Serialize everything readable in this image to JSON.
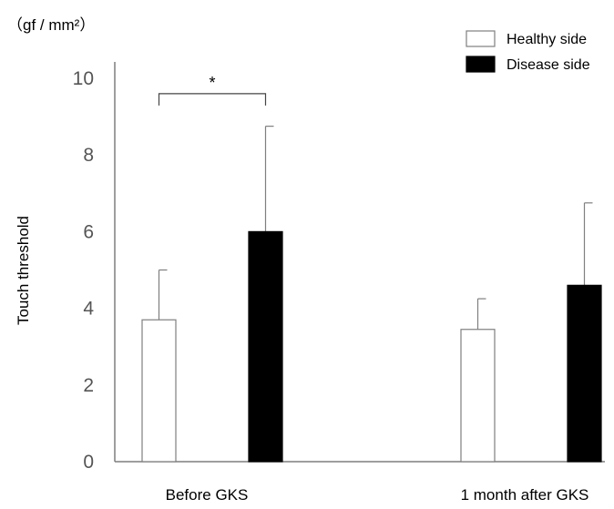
{
  "chart_data": {
    "type": "bar",
    "title": "",
    "unit_label": "（gf / mm²）",
    "xlabel": "",
    "ylabel": "Touch threshold",
    "ylim": [
      0,
      10
    ],
    "yticks": [
      0,
      2,
      4,
      6,
      8,
      10
    ],
    "categories": [
      "Before GKS",
      "1 month after GKS"
    ],
    "series": [
      {
        "name": "Healthy side",
        "fill": "#ffffff",
        "stroke": "#7f7f7f",
        "values": [
          3.7,
          3.45
        ],
        "error_upper": [
          1.3,
          0.8
        ]
      },
      {
        "name": "Disease side",
        "fill": "#000000",
        "stroke": "#000000",
        "values": [
          6.0,
          4.6
        ],
        "error_upper": [
          2.75,
          2.15
        ]
      }
    ],
    "significance": [
      {
        "category_index": 0,
        "label": "*",
        "height": 9.6
      }
    ],
    "legend_position": "top-right",
    "grid": false,
    "colors": {
      "axis": "#7f7f7f",
      "text": "#000000",
      "tick_text": "#555555"
    }
  }
}
